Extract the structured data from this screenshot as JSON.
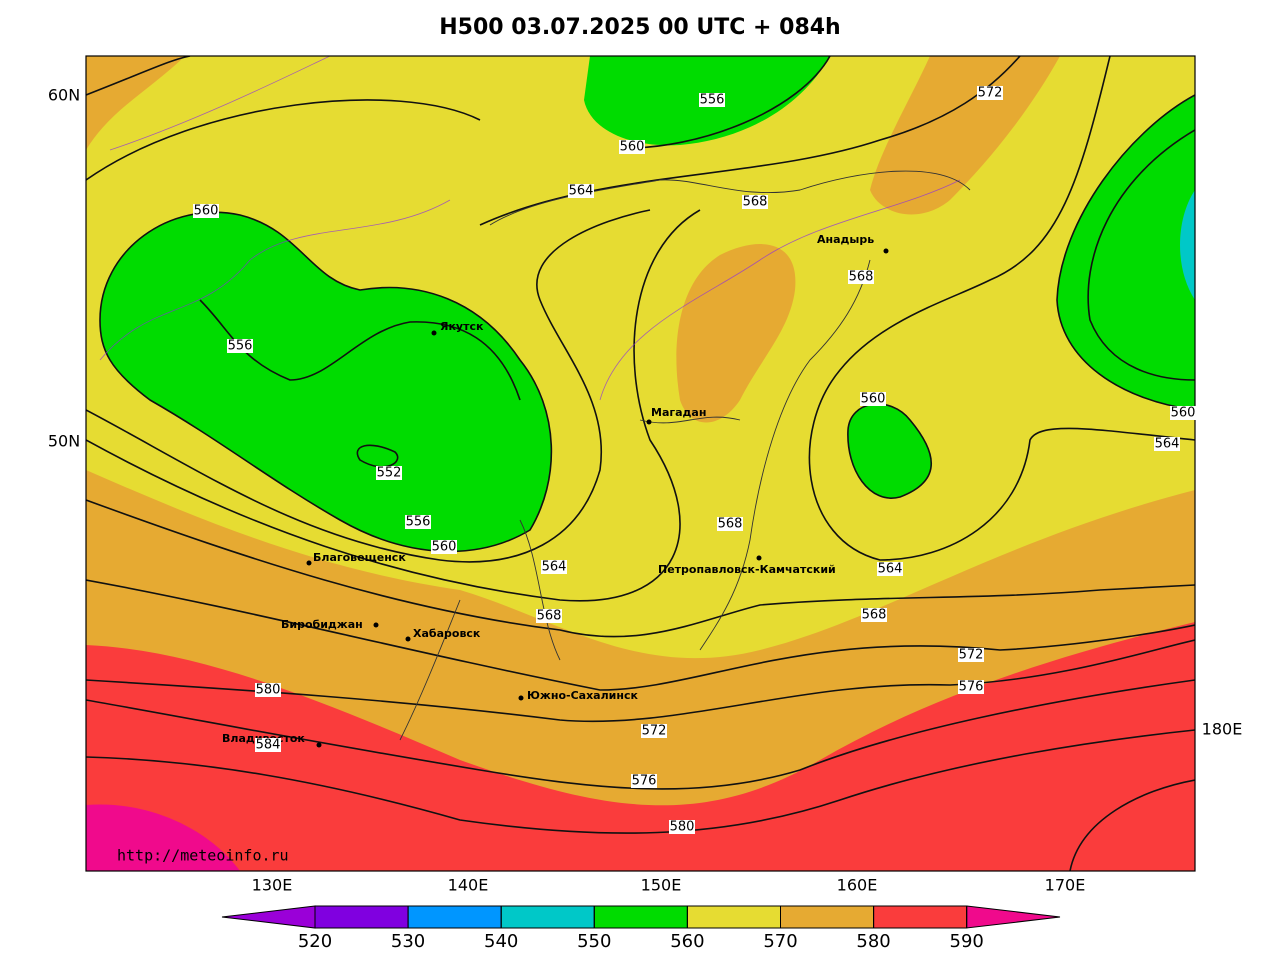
{
  "title": "H500  03.07.2025 00 UTC + 084h",
  "lat_labels": [
    "60N",
    "50N"
  ],
  "lon_labels": [
    "130E",
    "140E",
    "150E",
    "160E",
    "170E",
    "180E"
  ],
  "cities": [
    "Якутск",
    "Магадан",
    "Анадырь",
    "Благовещенск",
    "Биробиджан",
    "Хабаровск",
    "Владивосток",
    "Южно-Сахалинск",
    "Петропавловск-Камчатский"
  ],
  "contour_labels": [
    556,
    560,
    572,
    564,
    568,
    560,
    556,
    568,
    560,
    560,
    564,
    552,
    556,
    560,
    568,
    564,
    564,
    568,
    568,
    572,
    576,
    580,
    584,
    572,
    576,
    580
  ],
  "colorbar": {
    "ticks": [
      520,
      530,
      540,
      550,
      560,
      570,
      580,
      590
    ],
    "colors": [
      "#9a00d8",
      "#8000e0",
      "#0096ff",
      "#00c8c8",
      "#00dc00",
      "#e6dc32",
      "#e6aa32",
      "#fa3c3c",
      "#f00a8c"
    ]
  },
  "source": "http://meteoinfo.ru"
}
